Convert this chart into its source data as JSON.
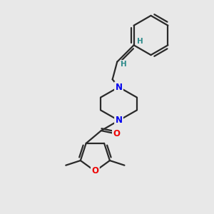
{
  "bg_color": "#e8e8e8",
  "bond_color": "#2a2a2a",
  "N_color": "#0000ee",
  "O_color": "#ee0000",
  "H_color": "#2e8b8b",
  "bond_lw": 1.6,
  "xlim": [
    0,
    10
  ],
  "ylim": [
    0,
    10
  ]
}
